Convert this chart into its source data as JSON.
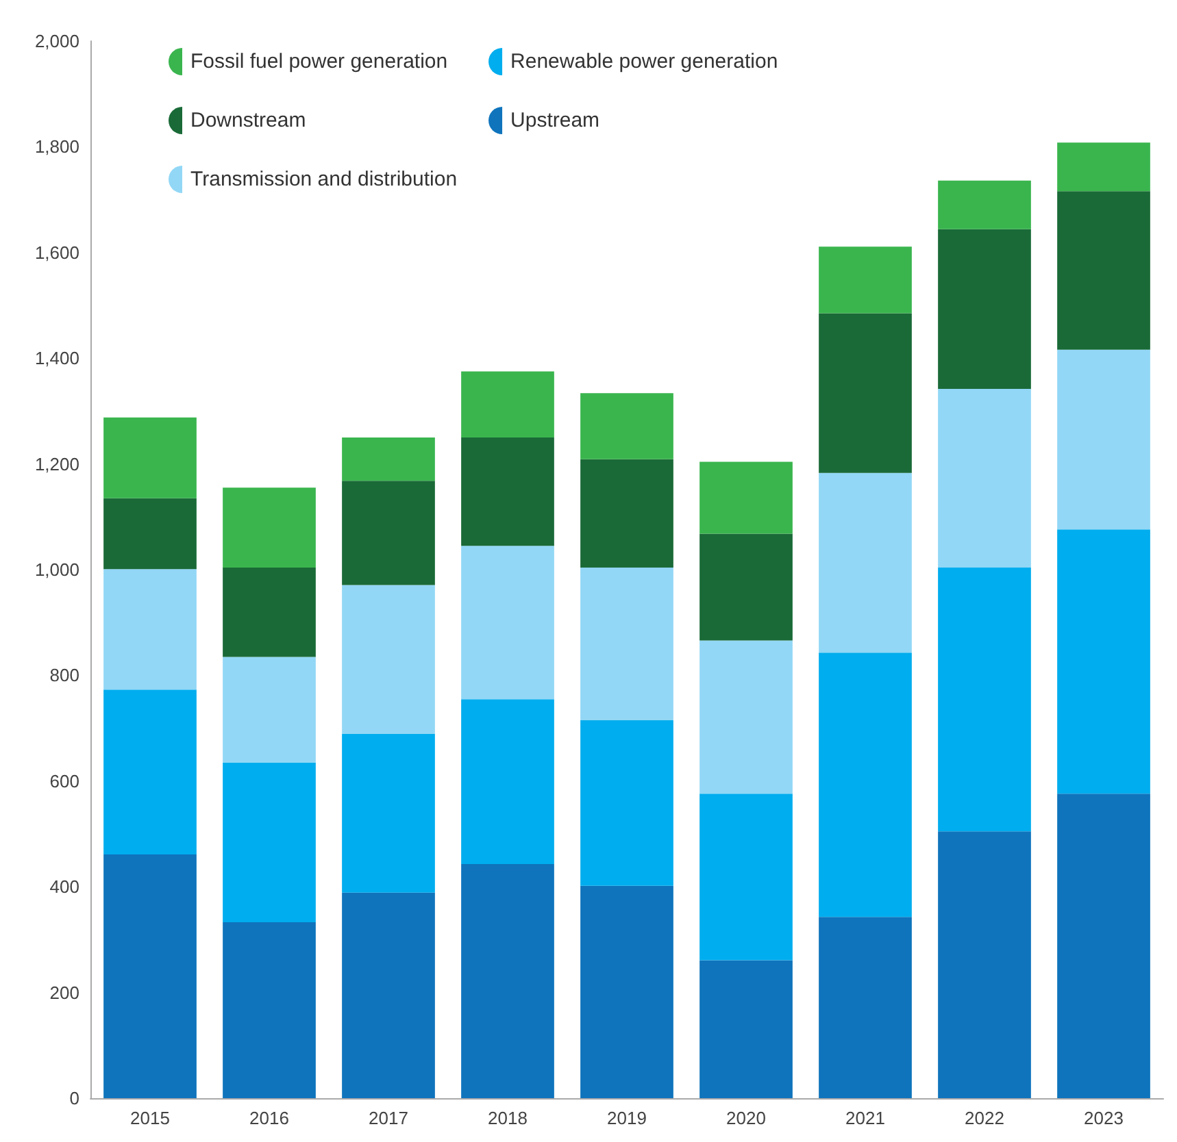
{
  "chart_data": {
    "type": "bar",
    "stacked": true,
    "categories": [
      "2015",
      "2016",
      "2017",
      "2018",
      "2019",
      "2020",
      "2021",
      "2022",
      "2023"
    ],
    "series": [
      {
        "name": "Upstream",
        "color": "#0f74bc",
        "values": [
          461,
          333,
          389,
          443,
          402,
          261,
          343,
          505,
          576
        ]
      },
      {
        "name": "Renewable power generation",
        "color": "#00adee",
        "values": [
          312,
          302,
          300,
          312,
          313,
          315,
          500,
          499,
          500
        ]
      },
      {
        "name": "Transmission and distribution",
        "color": "#92d7f6",
        "values": [
          228,
          200,
          282,
          290,
          289,
          290,
          340,
          338,
          340
        ]
      },
      {
        "name": "Downstream",
        "color": "#1a6a37",
        "values": [
          134,
          169,
          197,
          205,
          205,
          202,
          302,
          302,
          300
        ]
      },
      {
        "name": "Fossil fuel power generation",
        "color": "#3ab54e",
        "values": [
          153,
          151,
          82,
          125,
          125,
          136,
          126,
          92,
          92
        ]
      }
    ],
    "ylim": [
      0,
      2000
    ],
    "yticks": [
      0,
      200,
      400,
      600,
      800,
      {
        "value": 1000,
        "label": "1,000"
      },
      {
        "value": 1200,
        "label": "1,200"
      },
      {
        "value": 1400,
        "label": "1,400"
      },
      {
        "value": 1600,
        "label": "1,600"
      },
      {
        "value": 1800,
        "label": "1,800"
      },
      {
        "value": 2000,
        "label": "2,000"
      }
    ],
    "grid": false,
    "legend": "top left"
  }
}
